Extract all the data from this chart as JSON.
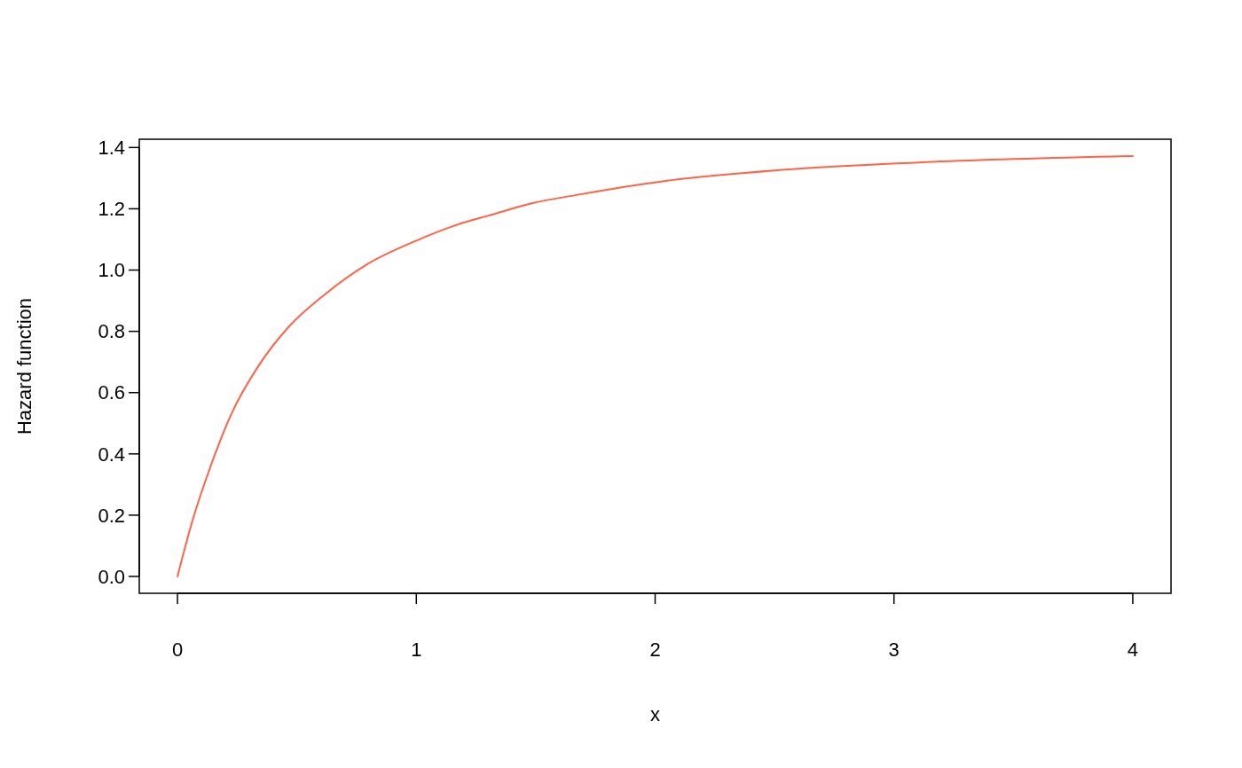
{
  "chart_data": {
    "type": "line",
    "xlabel": "x",
    "ylabel": "Hazard function",
    "x": [
      0,
      0.062,
      0.137,
      0.226,
      0.339,
      0.465,
      0.616,
      0.792,
      1.0,
      1.195,
      1.299,
      1.484,
      1.671,
      2.043,
      2.601,
      3.159,
      4.0
    ],
    "series": [
      {
        "color": "#ff6347",
        "values": [
          0,
          0.18,
          0.356,
          0.531,
          0.687,
          0.814,
          0.92,
          1.018,
          1.096,
          1.154,
          1.177,
          1.218,
          1.245,
          1.291,
          1.331,
          1.353,
          1.372
        ]
      }
    ],
    "xlim": [
      -0.16,
      4.16
    ],
    "ylim": [
      -0.055,
      1.427
    ],
    "xticks": [
      0,
      1,
      2,
      3,
      4
    ],
    "yticks": [
      {
        "value": 0,
        "label": "0.0"
      },
      {
        "value": 0.2,
        "label": "0.2"
      },
      {
        "value": 0.4,
        "label": "0.4"
      },
      {
        "value": 0.6,
        "label": "0.6"
      },
      {
        "value": 0.8,
        "label": "0.8"
      },
      {
        "value": 1.0,
        "label": "1.0"
      },
      {
        "value": 1.2,
        "label": "1.2"
      },
      {
        "value": 1.4,
        "label": "1.4"
      }
    ],
    "grid": false
  }
}
